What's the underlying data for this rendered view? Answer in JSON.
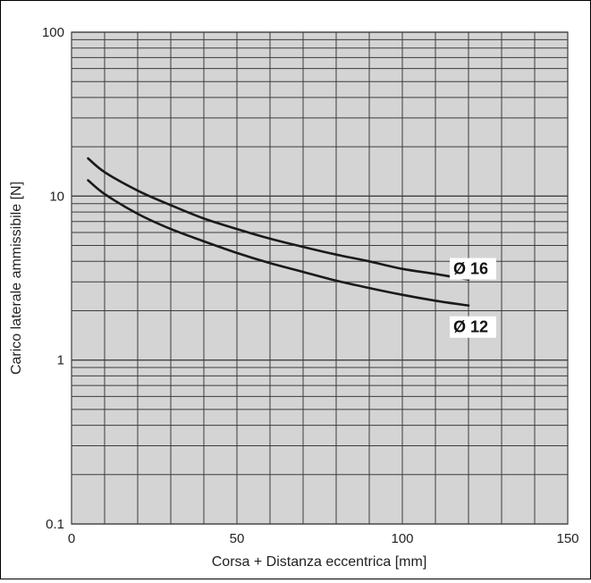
{
  "chart_data": {
    "type": "line",
    "title": "",
    "xlabel": "Corsa + Distanza eccentrica [mm]",
    "ylabel": "Carico laterale ammissibile [N]",
    "x_scale": "linear",
    "y_scale": "log",
    "xlim": [
      0,
      150
    ],
    "ylim": [
      0.1,
      100
    ],
    "x_ticks": [
      0,
      50,
      100,
      150
    ],
    "x_tick_labels": [
      "0",
      "50",
      "100",
      "150"
    ],
    "y_ticks": [
      0.1,
      1,
      10,
      100
    ],
    "y_tick_labels": [
      "0.1",
      "1",
      "10",
      "100"
    ],
    "grid": true,
    "series": [
      {
        "name": "Ø 16",
        "x": [
          5,
          10,
          20,
          30,
          40,
          50,
          60,
          70,
          80,
          90,
          100,
          110,
          120
        ],
        "y": [
          17,
          14,
          10.8,
          8.8,
          7.3,
          6.3,
          5.5,
          4.9,
          4.4,
          4.0,
          3.6,
          3.35,
          3.1
        ]
      },
      {
        "name": "Ø 12",
        "x": [
          5,
          10,
          20,
          30,
          40,
          50,
          60,
          70,
          80,
          90,
          100,
          110,
          120
        ],
        "y": [
          12.5,
          10.3,
          7.8,
          6.3,
          5.3,
          4.5,
          3.9,
          3.45,
          3.05,
          2.75,
          2.5,
          2.3,
          2.15
        ]
      }
    ],
    "colors": {
      "grid_background": "#d4d4d4",
      "grid_line": "#3c3c3c",
      "curve": "#1a1a1a"
    }
  }
}
